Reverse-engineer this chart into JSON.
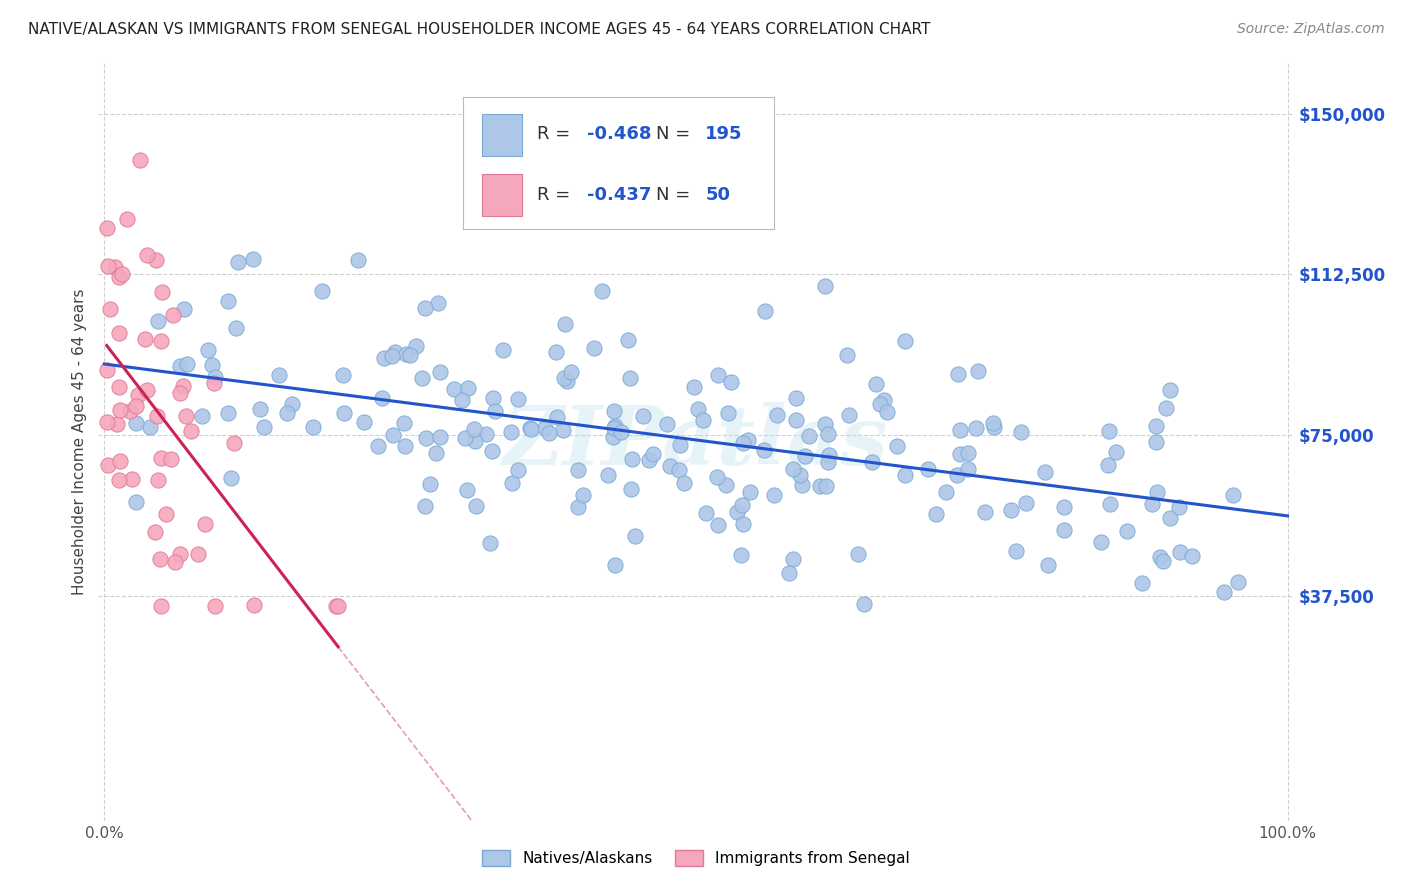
{
  "title": "NATIVE/ALASKAN VS IMMIGRANTS FROM SENEGAL HOUSEHOLDER INCOME AGES 45 - 64 YEARS CORRELATION CHART",
  "source": "Source: ZipAtlas.com",
  "ylabel": "Householder Income Ages 45 - 64 years",
  "xlim": [
    0.0,
    1.0
  ],
  "ylim": [
    0,
    160000
  ],
  "plot_ylim": [
    -15000,
    160000
  ],
  "yticks": [
    37500,
    75000,
    112500,
    150000
  ],
  "ytick_labels": [
    "$37,500",
    "$75,000",
    "$112,500",
    "$150,000"
  ],
  "native_color": "#aec6e8",
  "native_edge_color": "#7aaad4",
  "immigrant_color": "#f5a8bc",
  "immigrant_edge_color": "#e07898",
  "trend_native_color": "#2255cc",
  "trend_immigrant_color": "#cc2255",
  "legend_native_R": "-0.468",
  "legend_native_N": "195",
  "legend_immigrant_R": "-0.437",
  "legend_immigrant_N": "50",
  "native_label": "Natives/Alaskans",
  "immigrant_label": "Immigrants from Senegal",
  "watermark": "ZIPatlas",
  "background_color": "#ffffff",
  "grid_color": "#cccccc",
  "title_color": "#222222",
  "ylabel_color": "#444444",
  "ytick_color": "#2255cc",
  "xtick_color": "#555555",
  "source_color": "#888888"
}
